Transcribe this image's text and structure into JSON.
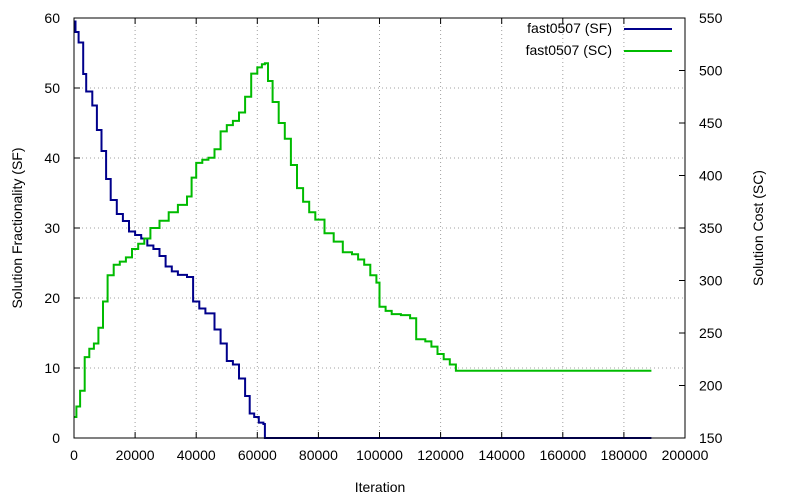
{
  "chart_data": {
    "type": "line",
    "xlabel": "Iteration",
    "ylabel": "Solution Fractionality (SF)",
    "y2label": "Solution Cost (SC)",
    "xlim": [
      0,
      200000
    ],
    "ylim": [
      0,
      60
    ],
    "y2lim": [
      150,
      550
    ],
    "x_ticks": [
      "0",
      "20000",
      "40000",
      "60000",
      "80000",
      "100000",
      "120000",
      "140000",
      "160000",
      "180000",
      "200000"
    ],
    "y_ticks": [
      "0",
      "10",
      "20",
      "30",
      "40",
      "50",
      "60"
    ],
    "y2_ticks": [
      "150",
      "200",
      "250",
      "300",
      "350",
      "400",
      "450",
      "500",
      "550"
    ],
    "grid": true,
    "legend_position": "top-right",
    "series": [
      {
        "name": "fast0507 (SF)",
        "axis": "left",
        "color": "#00008b",
        "points": [
          [
            0,
            59.5
          ],
          [
            500,
            58
          ],
          [
            1500,
            56.5
          ],
          [
            3000,
            52
          ],
          [
            4000,
            49.5
          ],
          [
            6000,
            47.5
          ],
          [
            7500,
            44
          ],
          [
            9000,
            41
          ],
          [
            10500,
            37
          ],
          [
            12000,
            34
          ],
          [
            14000,
            32
          ],
          [
            16000,
            31
          ],
          [
            18000,
            29.5
          ],
          [
            20000,
            29
          ],
          [
            22000,
            28.5
          ],
          [
            24000,
            27.5
          ],
          [
            26000,
            27
          ],
          [
            28000,
            26
          ],
          [
            30000,
            24.5
          ],
          [
            32000,
            23.8
          ],
          [
            34000,
            23.3
          ],
          [
            37000,
            23
          ],
          [
            39000,
            19.5
          ],
          [
            41000,
            18.5
          ],
          [
            43000,
            17.8
          ],
          [
            46000,
            15.5
          ],
          [
            48000,
            13.5
          ],
          [
            50000,
            11
          ],
          [
            52000,
            10.5
          ],
          [
            54000,
            8.5
          ],
          [
            56000,
            6
          ],
          [
            57500,
            3.5
          ],
          [
            59000,
            3
          ],
          [
            60500,
            2.2
          ],
          [
            62000,
            2
          ],
          [
            62500,
            0
          ],
          [
            189000,
            0
          ]
        ]
      },
      {
        "name": "fast0507 (SC)",
        "axis": "right",
        "color": "#00bb00",
        "points": [
          [
            0,
            170
          ],
          [
            800,
            180
          ],
          [
            2000,
            195
          ],
          [
            3500,
            227
          ],
          [
            5000,
            235
          ],
          [
            6500,
            240
          ],
          [
            8000,
            255
          ],
          [
            9500,
            280
          ],
          [
            11000,
            305
          ],
          [
            13000,
            315
          ],
          [
            15000,
            318
          ],
          [
            17000,
            322
          ],
          [
            19000,
            330
          ],
          [
            21000,
            335
          ],
          [
            23000,
            340
          ],
          [
            25000,
            350
          ],
          [
            28000,
            357
          ],
          [
            31000,
            365
          ],
          [
            34000,
            372
          ],
          [
            37000,
            380
          ],
          [
            38500,
            398
          ],
          [
            40000,
            412
          ],
          [
            42000,
            415
          ],
          [
            44000,
            417
          ],
          [
            46000,
            425
          ],
          [
            48000,
            442
          ],
          [
            50000,
            448
          ],
          [
            52000,
            452
          ],
          [
            54000,
            460
          ],
          [
            56000,
            475
          ],
          [
            58000,
            497
          ],
          [
            60000,
            503
          ],
          [
            61500,
            506
          ],
          [
            62500,
            507
          ],
          [
            63500,
            490
          ],
          [
            65000,
            470
          ],
          [
            67000,
            450
          ],
          [
            69000,
            435
          ],
          [
            71000,
            410
          ],
          [
            73000,
            388
          ],
          [
            75000,
            375
          ],
          [
            77000,
            365
          ],
          [
            79000,
            358
          ],
          [
            82000,
            345
          ],
          [
            85000,
            337
          ],
          [
            88000,
            327
          ],
          [
            91000,
            325
          ],
          [
            93000,
            320
          ],
          [
            95000,
            315
          ],
          [
            97000,
            305
          ],
          [
            99000,
            298
          ],
          [
            100000,
            275
          ],
          [
            102000,
            271
          ],
          [
            104000,
            268
          ],
          [
            107000,
            267
          ],
          [
            110000,
            264
          ],
          [
            112000,
            244
          ],
          [
            115000,
            242
          ],
          [
            117000,
            237
          ],
          [
            119000,
            230
          ],
          [
            121000,
            225
          ],
          [
            123000,
            220
          ],
          [
            125000,
            214
          ],
          [
            189000,
            214
          ]
        ]
      }
    ]
  }
}
